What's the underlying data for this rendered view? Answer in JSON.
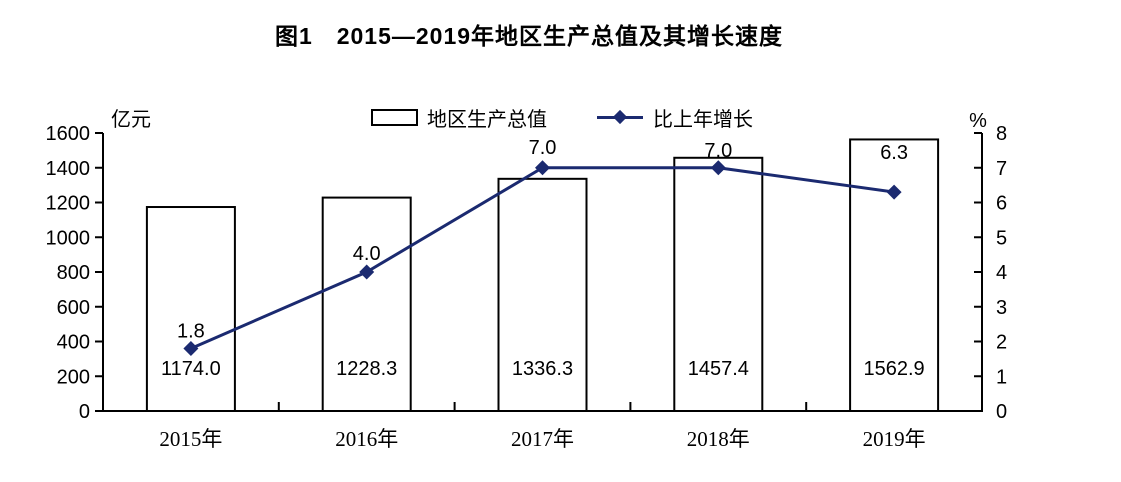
{
  "title": "图1　2015—2019年地区生产总值及其增长速度",
  "chart_data": {
    "type": "bar",
    "subtype": "bar-line-combo",
    "title": "图1　2015—2019年地区生产总值及其增长速度",
    "categories": [
      "2015年",
      "2016年",
      "2017年",
      "2018年",
      "2019年"
    ],
    "series": [
      {
        "name": "地区生产总值",
        "type": "bar",
        "axis": "left",
        "values": [
          1174.0,
          1228.3,
          1336.3,
          1457.4,
          1562.9
        ],
        "fill": "#ffffff",
        "stroke": "#000000"
      },
      {
        "name": "比上年增长",
        "type": "line",
        "axis": "right",
        "values": [
          1.8,
          4.0,
          7.0,
          7.0,
          6.3
        ],
        "color": "#1b2a70",
        "marker": "diamond"
      }
    ],
    "left_axis": {
      "unit": "亿元",
      "min": 0,
      "max": 1600,
      "step": 200
    },
    "right_axis": {
      "unit": "%",
      "min": 0,
      "max": 8,
      "step": 1
    },
    "legend_position": "top",
    "grid": false,
    "background": "#ffffff"
  }
}
